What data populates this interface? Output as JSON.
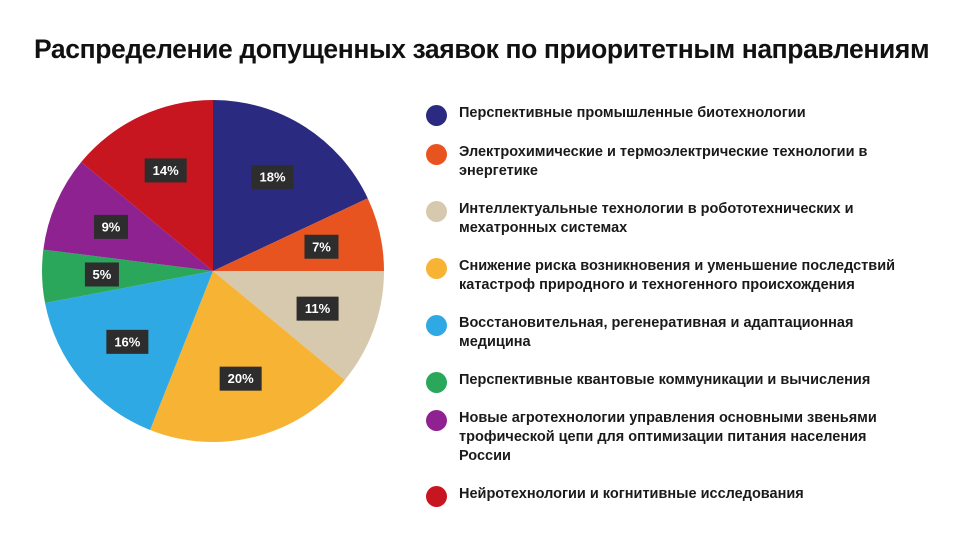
{
  "chart_data": {
    "type": "pie",
    "title": "Распределение допущенных заявок по приоритетным направлениям",
    "slices": [
      {
        "name": "Перспективные промышленные биотехнологии",
        "value": 18,
        "label": "18%",
        "color": "#2a2a80"
      },
      {
        "name": "Электрохимические и термоэлектрические технологии в энергетике",
        "value": 7,
        "label": "7%",
        "color": "#e8541f"
      },
      {
        "name": "Интеллектуальные технологии в робототехнических и мехатронных системах",
        "value": 11,
        "label": "11%",
        "color": "#d6c9ad"
      },
      {
        "name": "Снижение риска возникновения и уменьшение последствий катастроф природного и техногенного происхождения",
        "value": 20,
        "label": "20%",
        "color": "#f7b334"
      },
      {
        "name": "Восстановительная, регенеративная и адаптационная медицина",
        "value": 16,
        "label": "16%",
        "color": "#2ea9e3"
      },
      {
        "name": "Перспективные квантовые коммуникации и вычисления",
        "value": 5,
        "label": "5%",
        "color": "#2aa75b"
      },
      {
        "name": "Новые агротехнологии управления основными звеньями трофической цепи для оптимизации питания населения России",
        "value": 9,
        "label": "9%",
        "color": "#8e2291"
      },
      {
        "name": "Нейротехнологии и когнитивные исследования",
        "value": 14,
        "label": "14%",
        "color": "#c7161f"
      }
    ],
    "legend": "right"
  }
}
